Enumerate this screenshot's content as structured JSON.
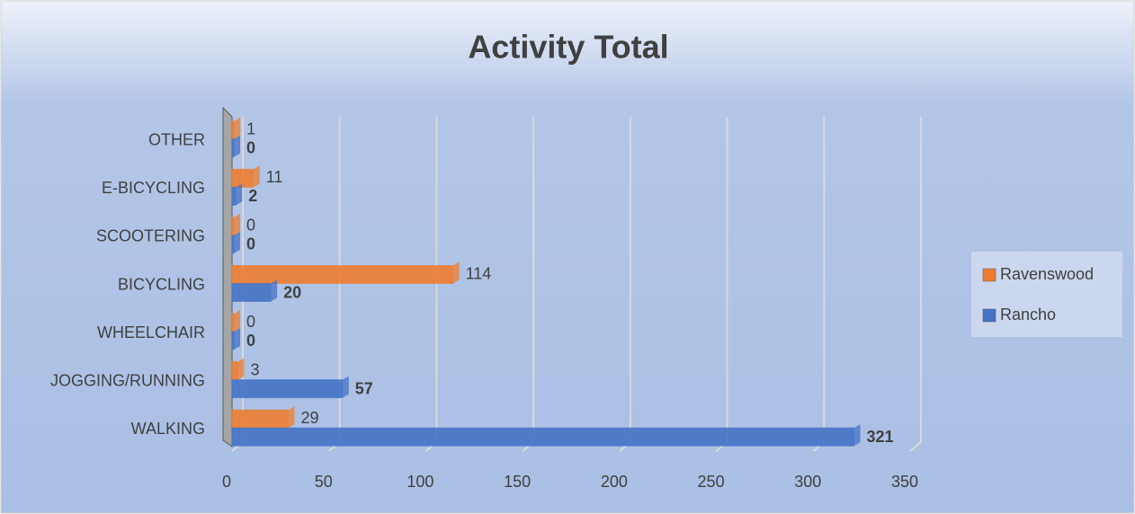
{
  "chart_data": {
    "type": "bar",
    "orientation": "horizontal",
    "title": "Activity Total",
    "categories": [
      "WALKING",
      "JOGGING/RUNNING",
      "WHEELCHAIR",
      "BICYCLING",
      "SCOOTERING",
      "E-BICYCLING",
      "OTHER"
    ],
    "series": [
      {
        "name": "Ravenswood",
        "color": "#ed7d31",
        "values": [
          29,
          3,
          0,
          114,
          0,
          11,
          1
        ]
      },
      {
        "name": "Rancho",
        "color": "#4472c4",
        "values": [
          321,
          57,
          0,
          20,
          0,
          2,
          0
        ]
      }
    ],
    "xlim": [
      0,
      350
    ],
    "xticks": [
      0,
      50,
      100,
      150,
      200,
      250,
      300,
      350
    ],
    "grid": true,
    "legend": "right"
  }
}
